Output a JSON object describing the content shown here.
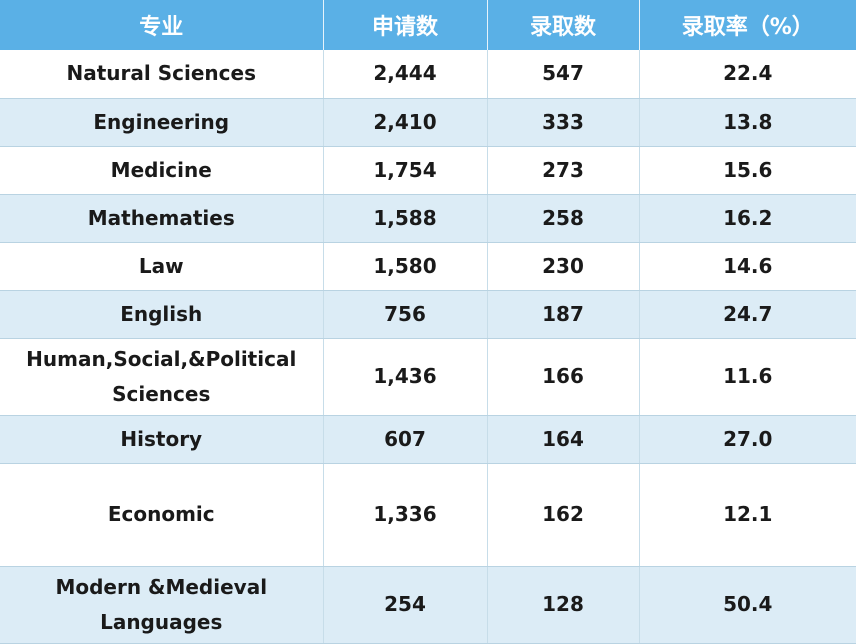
{
  "chart_data": {
    "type": "table",
    "columns": [
      "专业",
      "申请数",
      "录取数",
      "录取率（%）"
    ],
    "rows": [
      [
        "Natural Sciences",
        "2,444",
        "547",
        "22.4"
      ],
      [
        "Engineering",
        "2,410",
        "333",
        "13.8"
      ],
      [
        "Medicine",
        "1,754",
        "273",
        "15.6"
      ],
      [
        "Mathematies",
        "1,588",
        "258",
        "16.2"
      ],
      [
        "Law",
        "1,580",
        "230",
        "14.6"
      ],
      [
        "English",
        "756",
        "187",
        "24.7"
      ],
      [
        "Human,Social,&Political Sciences",
        "1,436",
        "166",
        "11.6"
      ],
      [
        "History",
        "607",
        "164",
        "27.0"
      ],
      [
        "Economic",
        "1,336",
        "162",
        "12.1"
      ],
      [
        "Modern &Medieval Languages",
        "254",
        "128",
        "50.4"
      ]
    ]
  },
  "colors": {
    "header_bg": "#5ab0e6",
    "header_text": "#ffffff",
    "row_alt_bg": "#dcecf6",
    "row_bg": "#ffffff"
  }
}
